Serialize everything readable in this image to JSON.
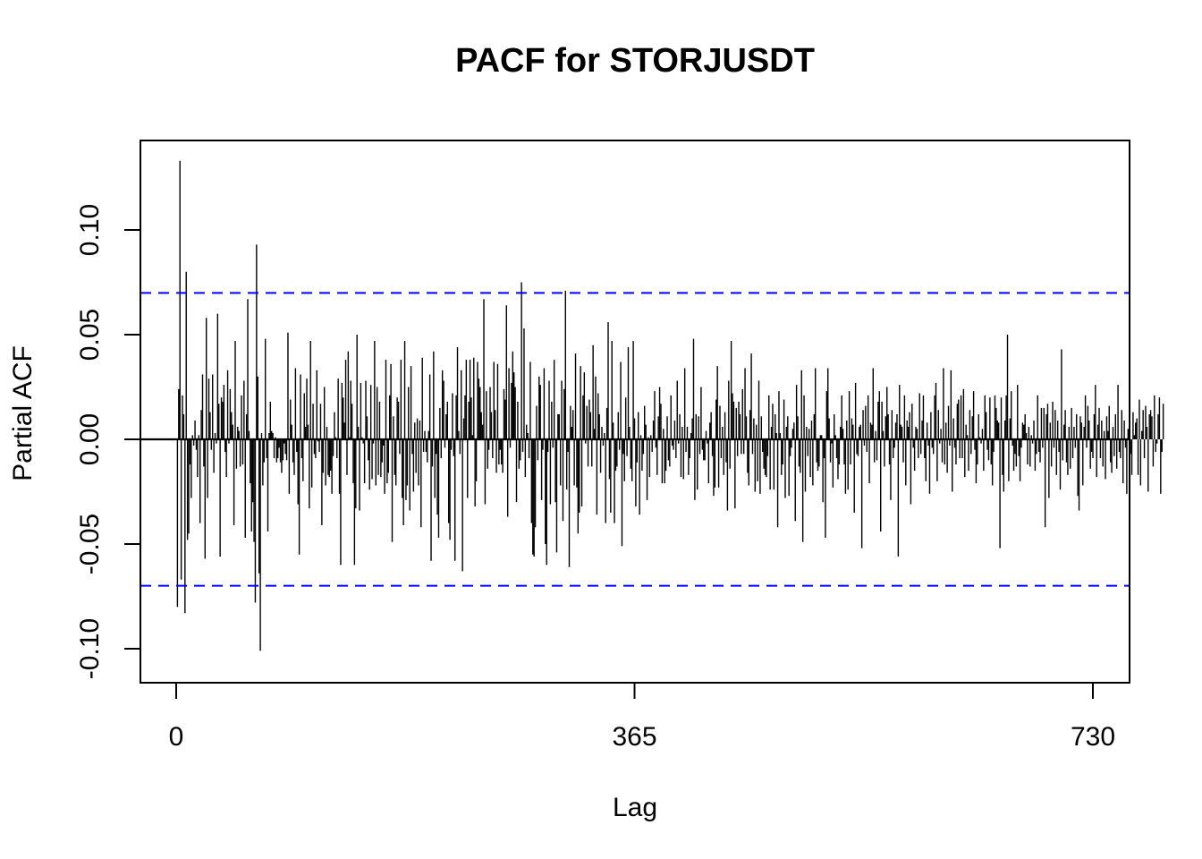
{
  "chart_data": {
    "type": "bar",
    "subtype": "pacf-spike-plot",
    "title": "PACF for STORJUSDT",
    "xlabel": "Lag",
    "ylabel": "Partial ACF",
    "xlim": [
      -27,
      760
    ],
    "ylim": [
      -0.115,
      0.143
    ],
    "x_ticks": [
      0,
      365,
      730
    ],
    "x_tick_labels": [
      "0",
      "365",
      "730"
    ],
    "y_ticks": [
      -0.1,
      -0.05,
      0.0,
      0.05,
      0.1
    ],
    "y_tick_labels": [
      "-0.10",
      "-0.05",
      "0.00",
      "0.05",
      "0.10"
    ],
    "confidence_bound": 0.0699,
    "confidence_color": "#0000ff",
    "bar_color": "#000000",
    "grid": false,
    "legend": "none",
    "n_lags": 730,
    "values": [
      -0.08,
      0.024,
      0.133,
      -0.067,
      0.021,
      0.012,
      -0.083,
      0.08,
      -0.048,
      -0.045,
      -0.012,
      -0.028,
      0.002,
      -0.003,
      0.009,
      -0.005,
      -0.018,
      0.002,
      -0.04,
      0.014,
      0.031,
      -0.013,
      -0.057,
      0.058,
      -0.028,
      0.029,
      0.013,
      -0.005,
      0.031,
      -0.016,
      0.003,
      -0.002,
      0.06,
      0.017,
      -0.056,
      0.02,
      0.018,
      0.026,
      -0.006,
      -0.018,
      0.033,
      -0.002,
      0.024,
      0.013,
      0.007,
      -0.041,
      0.047,
      -0.014,
      0.006,
      0.004,
      -0.013,
      0.021,
      -0.012,
      0.028,
      -0.047,
      0.012,
      0.067,
      0.004,
      -0.021,
      -0.044,
      -0.03,
      -0.049,
      -0.078,
      0.093,
      0.03,
      -0.064,
      -0.101,
      0.003,
      -0.022,
      -0.011,
      0.048,
      -0.009,
      -0.044,
      0.003,
      0.018,
      0.004,
      0.003,
      -0.009,
      0.001,
      -0.011,
      -0.009,
      -0.004,
      -0.011,
      -0.016,
      -0.01,
      -0.002,
      -0.007,
      -0.01,
      0.051,
      -0.026,
      0.019,
      0.007,
      -0.011,
      -0.017,
      0.034,
      -0.006,
      -0.031,
      -0.055,
      0.031,
      -0.009,
      -0.02,
      0.022,
      0.006,
      0.029,
      0.007,
      -0.033,
      0.047,
      -0.023,
      0.017,
      -0.007,
      -0.009,
      0.033,
      -0.001,
      -0.006,
      0.017,
      -0.041,
      -0.016,
      0.025,
      -0.022,
      0.006,
      -0.017,
      -0.018,
      -0.015,
      -0.026,
      -0.008,
      0.013,
      0.001,
      -0.009,
      0.029,
      -0.026,
      -0.06,
      0.027,
      0.02,
      0.008,
      0.038,
      -0.017,
      0.042,
      0.001,
      0.028,
      0.017,
      -0.021,
      -0.06,
      -0.033,
      0.05,
      0.006,
      -0.034,
      0.027,
      0.001,
      -0.002,
      -0.021,
      0.028,
      0.011,
      -0.01,
      -0.024,
      0.026,
      -0.019,
      -0.002,
      0.047,
      -0.022,
      0.025,
      -0.017,
      0.018,
      -0.018,
      -0.011,
      -0.003,
      -0.026,
      0.038,
      -0.021,
      -0.016,
      0.021,
      0.036,
      -0.049,
      0.011,
      -0.017,
      -0.022,
      0.02,
      0.018,
      -0.007,
      0.038,
      -0.028,
      -0.041,
      0.047,
      -0.029,
      -0.022,
      0.025,
      -0.034,
      0.035,
      -0.007,
      -0.025,
      0.008,
      -0.016,
      0.01,
      -0.022,
      0.009,
      -0.042,
      0.039,
      -0.006,
      0.004,
      -0.006,
      -0.011,
      0.004,
      0.031,
      -0.058,
      -0.013,
      0.042,
      -0.028,
      -0.007,
      -0.036,
      -0.047,
      0.015,
      -0.009,
      0.033,
      0.028,
      -0.004,
      0.012,
      0.018,
      -0.04,
      -0.048,
      -0.005,
      0.022,
      -0.008,
      -0.058,
      0.021,
      0.044,
      0.004,
      -0.007,
      0.033,
      -0.063,
      0.01,
      0.021,
      0.038,
      -0.028,
      0.018,
      0.038,
      0.02,
      0.002,
      0.039,
      -0.032,
      -0.02,
      0.037,
      0.029,
      0.025,
      0.013,
      0.007,
      0.067,
      -0.031,
      0.023,
      -0.014,
      -0.005,
      0.025,
      0.013,
      -0.009,
      0.037,
      0.014,
      -0.016,
      0.036,
      -0.012,
      -0.005,
      -0.012,
      -0.016,
      0.024,
      0.019,
      0.064,
      -0.037,
      0.034,
      -0.004,
      0.027,
      0.042,
      0.032,
      0.025,
      -0.03,
      0.018,
      -0.014,
      -0.01,
      0.075,
      -0.006,
      0.053,
      -0.018,
      0.007,
      0.003,
      -0.009,
      0.037,
      -0.04,
      -0.055,
      -0.056,
      -0.042,
      0.016,
      -0.01,
      0.03,
      0.026,
      -0.029,
      -0.005,
      0.034,
      -0.05,
      -0.06,
      -0.006,
      0.028,
      -0.031,
      0.018,
      -0.004,
      0.038,
      -0.03,
      -0.054,
      0.012,
      0.012,
      -0.022,
      0.028,
      -0.039,
      0.024,
      0.071,
      -0.024,
      -0.006,
      -0.061,
      0.016,
      0.006,
      0.014,
      -0.022,
      0.041,
      -0.023,
      -0.045,
      -0.035,
      0.035,
      -0.032,
      0.021,
      0.032,
      -0.002,
      0.016,
      -0.013,
      0.019,
      0.013,
      -0.013,
      0.045,
      0.005,
      0.03,
      -0.036,
      0.022,
      0.012,
      -0.016,
      0.006,
      -0.003,
      0.003,
      -0.04,
      0.015,
      0.056,
      -0.019,
      -0.035,
      0.047,
      0.008,
      -0.04,
      -0.015,
      -0.013,
      0.013,
      -0.005,
      0.037,
      -0.051,
      -0.007,
      -0.02,
      0.02,
      -0.008,
      0.044,
      0.006,
      -0.014,
      -0.02,
      0.047,
      0.01,
      -0.032,
      -0.011,
      0.013,
      -0.036,
      0.002,
      -0.015,
      -0.007,
      0.016,
      0.007,
      -0.029,
      0.001,
      -0.018,
      0.002,
      -0.006,
      0.009,
      0.023,
      -0.004,
      -0.017,
      0.011,
      0.025,
      0.017,
      -0.021,
      0.005,
      -0.021,
      -0.015,
      0.011,
      -0.01,
      -0.013,
      0.021,
      -0.003,
      -0.005,
      0.009,
      -0.009,
      0.028,
      -0.002,
      0.012,
      -0.018,
      0.006,
      -0.019,
      0.034,
      -0.006,
      0.006,
      -0.017,
      -0.009,
      0.003,
      0.01,
      0.048,
      -0.029,
      0.012,
      -0.024,
      0.011,
      -0.007,
      0.025,
      -0.005,
      -0.01,
      -0.01,
      0.004,
      -0.002,
      -0.021,
      0.008,
      0.013,
      -0.008,
      -0.027,
      -0.023,
      0.019,
      0.035,
      -0.023,
      0.016,
      -0.009,
      0.006,
      -0.017,
      0.013,
      -0.011,
      -0.034,
      0.028,
      -0.014,
      0.047,
      0.022,
      0.018,
      -0.033,
      0.015,
      -0.008,
      0.018,
      0.012,
      -0.007,
      0.024,
      -0.007,
      0.034,
      0.011,
      -0.016,
      -0.022,
      0.014,
      0.041,
      -0.007,
      0.01,
      -0.025,
      0.007,
      -0.02,
      0.028,
      -0.026,
      0.011,
      -0.006,
      -0.014,
      -0.017,
      -0.018,
      -0.008,
      0.021,
      -0.024,
      0.006,
      0.017,
      -0.024,
      0.012,
      0.003,
      -0.042,
      0.023,
      0.003,
      -0.017,
      -0.012,
      0.019,
      -0.028,
      0.006,
      0.011,
      -0.027,
      -0.008,
      -0.004,
      0.005,
      0.008,
      -0.039,
      0.026,
      0.011,
      -0.013,
      -0.016,
      0.033,
      -0.049,
      0.021,
      -0.025,
      0.006,
      -0.008,
      0.005,
      -0.018,
      0.009,
      -0.022,
      0.012,
      0.034,
      -0.011,
      -0.015,
      -0.013,
      0.002,
      0.002,
      -0.03,
      -0.009,
      -0.047,
      0.023,
      0.034,
      0.01,
      -0.011,
      -0.002,
      -0.023,
      0.012,
      0.002,
      -0.009,
      -0.019,
      -0.012,
      0.006,
      0.021,
      0.005,
      -0.012,
      -0.026,
      0.009,
      -0.024,
      0.023,
      -0.012,
      0.01,
      0.007,
      -0.035,
      0.027,
      -0.007,
      -0.008,
      0.006,
      0.007,
      -0.052,
      0.014,
      -0.003,
      0.016,
      -0.006,
      0.021,
      -0.021,
      0.008,
      0.007,
      0.034,
      -0.011,
      0.004,
      -0.01,
      0.018,
      0.023,
      -0.044,
      0.018,
      0.004,
      -0.013,
      0.011,
      0.025,
      0.012,
      -0.012,
      -0.029,
      0.014,
      -0.009,
      -0.004,
      0.008,
      0.012,
      -0.056,
      0.026,
      0.007,
      0.006,
      -0.011,
      0.021,
      -0.022,
      0.009,
      0.006,
      0.013,
      -0.031,
      0.017,
      -0.004,
      -0.015,
      0.006,
      0.005,
      -0.009,
      0.022,
      -0.007,
      0.009,
      0.021,
      -0.009,
      -0.02,
      0.008,
      -0.003,
      -0.026,
      0.013,
      -0.004,
      -0.007,
      0.021,
      0.027,
      -0.02,
      0.014,
      -0.002,
      0.005,
      -0.011,
      0.034,
      -0.012,
      0.008,
      -0.016,
      0.016,
      -0.003,
      0.033,
      -0.025,
      0.01,
      -0.004,
      -0.012,
      0.017,
      0.019,
      -0.009,
      0.021,
      -0.009,
      0.024,
      -0.018,
      0.007,
      0.002,
      -0.015,
      0.014,
      -0.007,
      0.011,
      0.023,
      -0.005,
      -0.021,
      -0.012,
      0.012,
      0.001,
      -0.002,
      0.005,
      -0.015,
      0.021,
      0.013,
      -0.005,
      -0.01,
      0.02,
      -0.012,
      -0.022,
      -0.006,
      0.021,
      0.015,
      0.009,
      0.008,
      -0.052,
      0.02,
      -0.017,
      -0.025,
      0.009,
      0.021,
      0.05,
      -0.02,
      0.01,
      0.023,
      -0.003,
      -0.015,
      -0.007,
      -0.013,
      0.026,
      -0.008,
      -0.02,
      -0.004,
      0.008,
      0.007,
      0.012,
      0.003,
      -0.012,
      0.006,
      -0.013,
      0.002,
      -0.002,
      0.009,
      -0.015,
      -0.007,
      0.021,
      -0.006,
      -0.011,
      0.015,
      -0.004,
      0.015,
      -0.042,
      0.012,
      0.017,
      -0.028,
      0.008,
      -0.013,
      0.018,
      -0.004,
      0.014,
      -0.017,
      0.009,
      -0.006,
      -0.024,
      0.043,
      -0.01,
      0.007,
      0.014,
      -0.011,
      -0.017,
      0.006,
      -0.014,
      0.015,
      -0.009,
      0.006,
      -0.004,
      0.012,
      -0.027,
      -0.034,
      0.011,
      0.008,
      -0.022,
      0.006,
      0.021,
      -0.004,
      0.016,
      0.009,
      -0.014,
      -0.006,
      -0.009,
      0.012,
      0.026,
      -0.018,
      0.007,
      0.015,
      -0.009,
      0.009,
      -0.013,
      0.004,
      -0.019,
      0.011,
      0.004,
      0.016,
      -0.011,
      -0.016,
      0.006,
      -0.008,
      0.012,
      -0.014,
      0.026,
      -0.006,
      -0.009,
      0.014,
      -0.021,
      0.009,
      -0.004,
      -0.026,
      0.005,
      0.021,
      -0.007,
      -0.017,
      0.013,
      0.002,
      0.008,
      0.01,
      -0.017,
      0.019,
      -0.022,
      0.004,
      0.014,
      -0.009,
      0.016,
      0.006,
      -0.025,
      0.012,
      0.014,
      0.011,
      -0.013,
      0.021,
      -0.006,
      -0.002,
      0.012,
      0.02,
      -0.026,
      -0.006,
      0.017
    ]
  }
}
